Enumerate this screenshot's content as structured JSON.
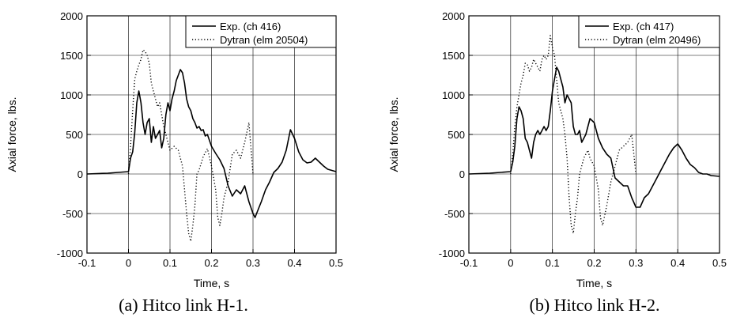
{
  "chart_data": [
    {
      "type": "line",
      "caption": "(a) Hitco link H-1.",
      "xlabel": "Time, s",
      "ylabel": "Axial force, lbs.",
      "xlim": [
        -0.1,
        0.5
      ],
      "ylim": [
        -1000,
        2000
      ],
      "xticks": [
        -0.1,
        0,
        0.1,
        0.2,
        0.3,
        0.4,
        0.5
      ],
      "yticks": [
        -1000,
        -500,
        0,
        500,
        1000,
        1500,
        2000
      ],
      "grid": true,
      "legend": "top-right",
      "series": [
        {
          "name": "Exp. (ch 416)",
          "style": "solid",
          "color": "#000000",
          "x": [
            -0.1,
            -0.05,
            0,
            0.005,
            0.01,
            0.015,
            0.02,
            0.025,
            0.03,
            0.035,
            0.04,
            0.045,
            0.05,
            0.055,
            0.06,
            0.065,
            0.07,
            0.075,
            0.08,
            0.085,
            0.09,
            0.095,
            0.1,
            0.105,
            0.11,
            0.115,
            0.12,
            0.125,
            0.13,
            0.135,
            0.14,
            0.145,
            0.15,
            0.155,
            0.16,
            0.165,
            0.17,
            0.175,
            0.18,
            0.185,
            0.19,
            0.2,
            0.21,
            0.22,
            0.23,
            0.24,
            0.25,
            0.26,
            0.27,
            0.28,
            0.29,
            0.3,
            0.305,
            0.31,
            0.32,
            0.33,
            0.34,
            0.35,
            0.36,
            0.37,
            0.38,
            0.39,
            0.4,
            0.41,
            0.42,
            0.43,
            0.44,
            0.45,
            0.46,
            0.47,
            0.48,
            0.5
          ],
          "y": [
            0,
            10,
            30,
            200,
            280,
            520,
            900,
            1050,
            900,
            650,
            500,
            650,
            700,
            400,
            600,
            450,
            500,
            550,
            330,
            450,
            750,
            900,
            800,
            950,
            1050,
            1180,
            1250,
            1320,
            1280,
            1150,
            950,
            850,
            800,
            700,
            650,
            580,
            600,
            550,
            560,
            480,
            500,
            350,
            260,
            180,
            70,
            -150,
            -280,
            -200,
            -250,
            -150,
            -350,
            -500,
            -550,
            -480,
            -350,
            -200,
            -100,
            20,
            70,
            150,
            300,
            560,
            450,
            280,
            180,
            140,
            150,
            200,
            150,
            100,
            60,
            30
          ]
        },
        {
          "name": "Dytran (elm 20504)",
          "style": "dotted",
          "color": "#000000",
          "x": [
            0,
            0.005,
            0.01,
            0.015,
            0.02,
            0.025,
            0.03,
            0.035,
            0.04,
            0.045,
            0.05,
            0.055,
            0.06,
            0.065,
            0.07,
            0.075,
            0.08,
            0.085,
            0.09,
            0.095,
            0.1,
            0.11,
            0.12,
            0.13,
            0.135,
            0.14,
            0.145,
            0.15,
            0.155,
            0.16,
            0.165,
            0.17,
            0.18,
            0.19,
            0.2,
            0.21,
            0.215,
            0.22,
            0.225,
            0.23,
            0.24,
            0.25,
            0.26,
            0.27,
            0.28,
            0.29,
            0.3
          ],
          "y": [
            0,
            350,
            800,
            1200,
            1300,
            1380,
            1450,
            1570,
            1550,
            1500,
            1400,
            1150,
            1050,
            950,
            850,
            900,
            750,
            600,
            500,
            400,
            300,
            350,
            300,
            100,
            -200,
            -500,
            -750,
            -850,
            -650,
            -400,
            0,
            50,
            220,
            320,
            100,
            -200,
            -550,
            -650,
            -500,
            -300,
            -100,
            250,
            300,
            200,
            400,
            650,
            0
          ]
        }
      ]
    },
    {
      "type": "line",
      "caption": "(b) Hitco link H-2.",
      "xlabel": "Time, s",
      "ylabel": "Axial force, lbs.",
      "xlim": [
        -0.1,
        0.5
      ],
      "ylim": [
        -1000,
        2000
      ],
      "xticks": [
        -0.1,
        0,
        0.1,
        0.2,
        0.3,
        0.4,
        0.5
      ],
      "yticks": [
        -1000,
        -500,
        0,
        500,
        1000,
        1500,
        2000
      ],
      "grid": true,
      "legend": "top-right",
      "series": [
        {
          "name": "Exp. (ch 417)",
          "style": "solid",
          "color": "#000000",
          "x": [
            -0.1,
            -0.05,
            0,
            0.005,
            0.01,
            0.015,
            0.02,
            0.025,
            0.03,
            0.035,
            0.04,
            0.045,
            0.05,
            0.055,
            0.06,
            0.065,
            0.07,
            0.075,
            0.08,
            0.085,
            0.09,
            0.095,
            0.1,
            0.105,
            0.11,
            0.115,
            0.12,
            0.125,
            0.13,
            0.135,
            0.14,
            0.145,
            0.15,
            0.155,
            0.16,
            0.165,
            0.17,
            0.175,
            0.18,
            0.19,
            0.2,
            0.21,
            0.22,
            0.23,
            0.24,
            0.25,
            0.26,
            0.27,
            0.28,
            0.29,
            0.3,
            0.31,
            0.32,
            0.33,
            0.34,
            0.35,
            0.36,
            0.37,
            0.38,
            0.39,
            0.4,
            0.41,
            0.42,
            0.43,
            0.44,
            0.45,
            0.46,
            0.47,
            0.48,
            0.5
          ],
          "y": [
            0,
            10,
            30,
            150,
            350,
            700,
            850,
            800,
            700,
            450,
            400,
            300,
            200,
            400,
            500,
            550,
            500,
            550,
            600,
            550,
            600,
            800,
            1050,
            1200,
            1350,
            1300,
            1200,
            1100,
            900,
            1000,
            950,
            900,
            600,
            500,
            500,
            550,
            400,
            450,
            500,
            700,
            650,
            450,
            330,
            250,
            200,
            -50,
            -100,
            -150,
            -150,
            -300,
            -420,
            -420,
            -300,
            -250,
            -150,
            -50,
            50,
            150,
            250,
            330,
            380,
            300,
            200,
            120,
            80,
            20,
            0,
            0,
            -20,
            -30
          ]
        },
        {
          "name": "Dytran (elm 20496)",
          "style": "dotted",
          "color": "#000000",
          "x": [
            0,
            0.005,
            0.01,
            0.015,
            0.02,
            0.025,
            0.03,
            0.035,
            0.04,
            0.045,
            0.05,
            0.055,
            0.06,
            0.065,
            0.07,
            0.075,
            0.08,
            0.085,
            0.09,
            0.095,
            0.1,
            0.105,
            0.11,
            0.115,
            0.12,
            0.125,
            0.13,
            0.135,
            0.14,
            0.145,
            0.15,
            0.155,
            0.16,
            0.165,
            0.17,
            0.175,
            0.18,
            0.185,
            0.19,
            0.2,
            0.21,
            0.215,
            0.22,
            0.23,
            0.24,
            0.25,
            0.26,
            0.27,
            0.28,
            0.29,
            0.3
          ],
          "y": [
            0,
            250,
            600,
            850,
            1000,
            1150,
            1250,
            1400,
            1380,
            1300,
            1350,
            1450,
            1400,
            1350,
            1300,
            1450,
            1500,
            1450,
            1500,
            1750,
            1600,
            1500,
            1200,
            900,
            800,
            700,
            500,
            200,
            -300,
            -650,
            -750,
            -500,
            -300,
            0,
            100,
            200,
            250,
            300,
            200,
            100,
            -200,
            -550,
            -650,
            -400,
            -100,
            100,
            300,
            350,
            400,
            500,
            0
          ]
        }
      ]
    }
  ]
}
